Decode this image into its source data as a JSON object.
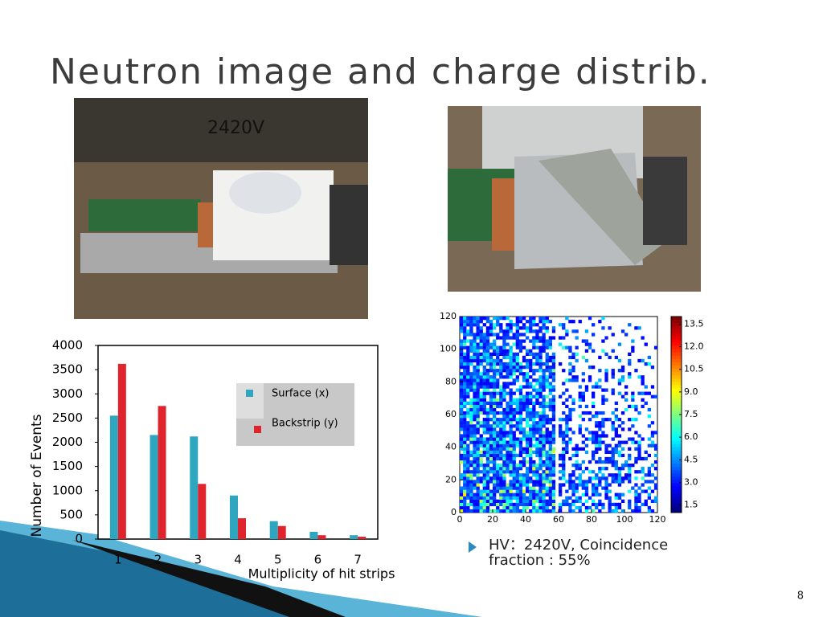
{
  "title": "Neutron image and charge distrib.",
  "photo_label": "2420V",
  "chart_data": [
    {
      "type": "bar",
      "categories": [
        "1",
        "2",
        "3",
        "4",
        "5",
        "6",
        "7"
      ],
      "series": [
        {
          "name": "Surface (x)",
          "color": "#2ea6c0",
          "values": [
            2550,
            2150,
            2120,
            900,
            370,
            150,
            80
          ]
        },
        {
          "name": "Backstrip (y)",
          "color": "#e0242e",
          "values": [
            3620,
            2750,
            1140,
            430,
            270,
            80,
            50
          ]
        }
      ],
      "ylim": [
        0,
        4000
      ],
      "yticks": [
        0,
        500,
        1000,
        1500,
        2000,
        2500,
        3000,
        3500,
        4000
      ],
      "xlabel": "Multiplicity of hit strips",
      "ylabel": "Number of Events"
    },
    {
      "type": "heatmap",
      "xlim": [
        0,
        120
      ],
      "xticks": [
        0,
        20,
        40,
        60,
        80,
        100,
        120
      ],
      "ylim": [
        0,
        120
      ],
      "yticks": [
        0,
        20,
        40,
        60,
        80,
        100,
        120
      ],
      "zlim": [
        1,
        14
      ],
      "zticks": [
        1.5,
        {
          "value": 3,
          "label": "3.0"
        },
        4.5,
        {
          "value": 6,
          "label": "6.0"
        },
        7.5,
        {
          "value": 9,
          "label": "9.0"
        },
        10.5,
        {
          "value": 12,
          "label": "12.0"
        },
        13.5
      ]
    }
  ],
  "bullet": [
    "HV：2420V, Coincidence",
    "fraction : 55%"
  ],
  "page_number": "8"
}
